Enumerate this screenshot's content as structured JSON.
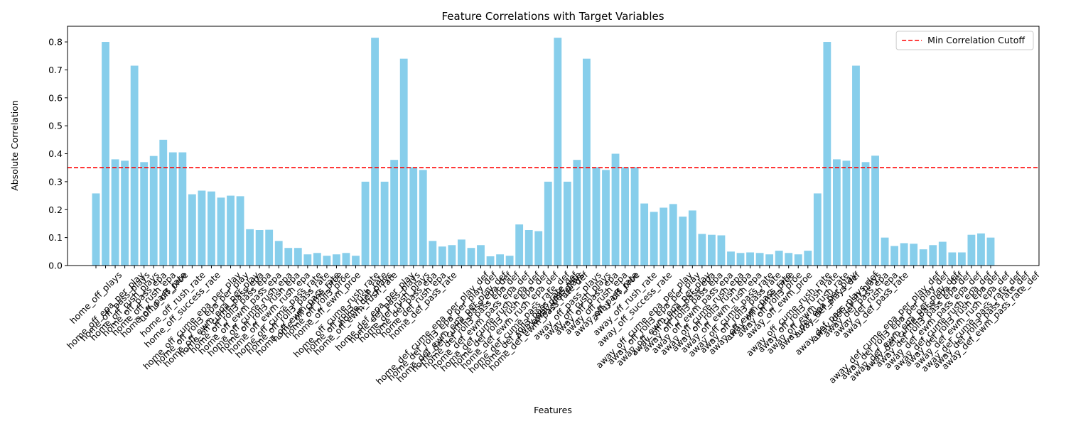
{
  "chart_data": {
    "type": "bar",
    "title": "Feature Correlations with Target Variables",
    "x_label": "Features",
    "y_label": "Absolute Correlation",
    "color": "#87ceeb",
    "categories": [
      "home_off_plays",
      "home_off_epa_per_play",
      "home_off_pass_plays",
      "home_off_rush_plays",
      "home_off_pass_epa",
      "home_off_rush_epa",
      "home_off_pass_rate",
      "home_off_proe",
      "home_off_rush_rate",
      "home_off_success_rate",
      "home_off_cume_epa_per_play",
      "home_off_roll3_epa_per_play",
      "home_off_ewm_epa_per_play",
      "home_off_cume_pass_epa",
      "home_off_roll3_pass_epa",
      "home_off_ewm_pass_epa",
      "home_off_cume_rush_epa",
      "home_off_roll3_rush_epa",
      "home_off_ewm_rush_epa",
      "home_off_cume_pass_rate",
      "home_off_roll3_pass_rate",
      "home_off_ewm_pass_rate",
      "home_off_cume_proe",
      "home_off_roll3_proe",
      "home_off_ewm_proe",
      "home_off_cume_rush_rate",
      "home_off_roll3_rush_rate",
      "home_off_ewm_rush_rate",
      "home_def_plays",
      "home_def_epa_per_play",
      "home_def_pass_plays",
      "home_def_rush_plays",
      "home_def_pass_epa",
      "home_def_rush_epa",
      "home_def_pass_rate",
      "home_def_cume_epa_per_play_def",
      "home_def_roll3_epa_per_play_def",
      "home_def_ewm_epa_per_play_def",
      "home_def_cume_pass_epa_def",
      "home_def_roll3_pass_epa_def",
      "home_def_ewm_pass_epa_def",
      "home_def_cume_rush_epa_def",
      "home_def_roll3_rush_epa_def",
      "home_def_ewm_rush_epa_def",
      "home_def_cume_pass_rate_def",
      "home_def_roll3_pass_rate_def",
      "home_def_ewm_pass_rate_def",
      "away_def_pass_rate",
      "away_def_plays",
      "away_off_pass_plays",
      "away_off_rush_plays",
      "away_off_pass_epa",
      "away_off_rush_epa",
      "away_off_pass_rate",
      "away_off_proe",
      "away_off_rush_rate",
      "away_off_success_rate",
      "away_off_cume_epa_per_play",
      "away_off_roll3_epa_per_play",
      "away_off_ewm_epa_per_play",
      "away_off_cume_pass_epa",
      "away_off_roll3_pass_epa",
      "away_off_ewm_pass_epa",
      "away_off_cume_rush_epa",
      "away_off_roll3_rush_epa",
      "away_off_ewm_rush_epa",
      "away_off_cume_pass_rate",
      "away_off_roll3_pass_rate",
      "away_off_ewm_pass_rate",
      "away_off_cume_proe",
      "away_off_roll3_proe",
      "away_off_ewm_proe",
      "away_off_cume_rush_rate",
      "away_off_roll3_rush_rate",
      "away_off_ewm_rush_rate",
      "away_def_epa_per_play",
      "away_def_plays_def",
      "away_def_pass_plays_def",
      "away_def_rush_plays",
      "away_def_pass_epa",
      "away_def_rush_epa",
      "away_def_pass_rate",
      "away_def_cume_epa_per_play_def",
      "away_def_roll3_epa_per_play_def",
      "away_def_ewm_epa_per_play_def",
      "away_def_cume_pass_epa_def",
      "away_def_roll3_pass_epa_def",
      "away_def_ewm_pass_epa_def",
      "away_def_cume_rush_epa_def",
      "away_def_roll3_rush_epa_def",
      "away_def_ewm_rush_epa_def",
      "away_def_cume_pass_rate_def",
      "away_def_roll3_pass_rate_def",
      "away_def_ewm_pass_rate_def"
    ],
    "values": [
      0.258,
      0.8,
      0.38,
      0.375,
      0.715,
      0.37,
      0.392,
      0.45,
      0.405,
      0.405,
      0.255,
      0.268,
      0.265,
      0.243,
      0.25,
      0.248,
      0.13,
      0.127,
      0.128,
      0.088,
      0.063,
      0.063,
      0.04,
      0.045,
      0.035,
      0.04,
      0.045,
      0.035,
      0.3,
      0.815,
      0.3,
      0.378,
      0.74,
      0.352,
      0.342,
      0.088,
      0.068,
      0.073,
      0.093,
      0.063,
      0.073,
      0.033,
      0.04,
      0.035,
      0.147,
      0.127,
      0.123,
      0.3,
      0.815,
      0.3,
      0.378,
      0.74,
      0.352,
      0.342,
      0.4,
      0.352,
      0.352,
      0.222,
      0.192,
      0.207,
      0.22,
      0.175,
      0.197,
      0.113,
      0.11,
      0.108,
      0.05,
      0.045,
      0.047,
      0.045,
      0.04,
      0.053,
      0.045,
      0.04,
      0.053,
      0.258,
      0.8,
      0.38,
      0.375,
      0.715,
      0.37,
      0.393,
      0.1,
      0.07,
      0.08,
      0.078,
      0.058,
      0.073,
      0.085,
      0.047,
      0.047,
      0.11,
      0.115,
      0.1
    ],
    "ylim": [
      0,
      0.856
    ],
    "yticks": [
      {
        "value": 0,
        "label": "0.0"
      },
      0.1,
      0.2,
      0.3,
      0.4,
      0.5,
      0.6,
      0.7,
      0.8
    ],
    "cutoff": {
      "name": "Min Correlation Cutoff",
      "value": 0.35,
      "color": "#ff0000"
    },
    "legend": "upper right"
  }
}
